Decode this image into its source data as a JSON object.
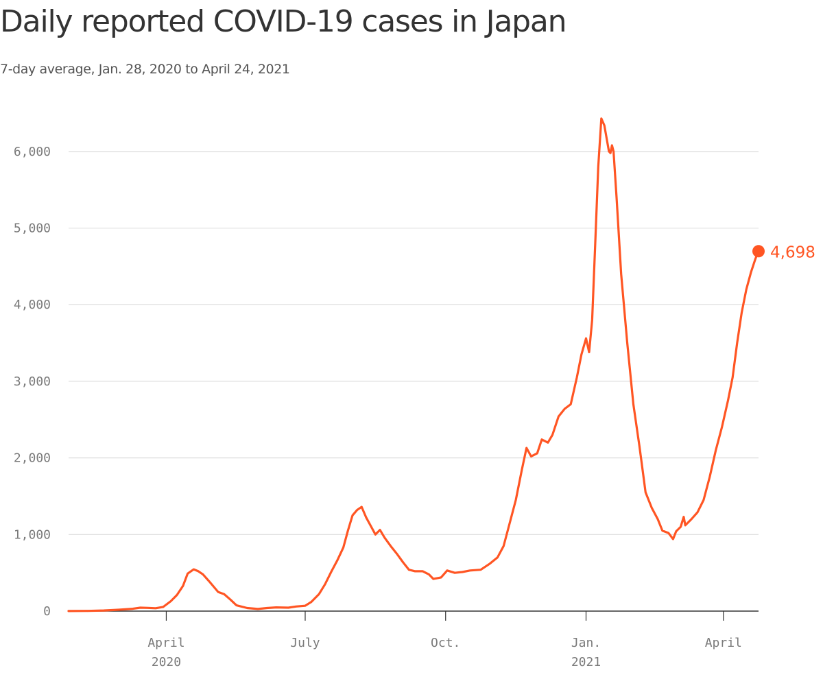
{
  "title": "Daily reported COVID-19 cases in Japan",
  "subtitle": "7-day average, Jan. 28, 2020 to April 24, 2021",
  "colors": {
    "line": "#ff5523",
    "grid": "#dddddd",
    "axis": "#333333"
  },
  "chart_data": {
    "type": "line",
    "title": "Daily reported COVID-19 cases in Japan",
    "subtitle": "7-day average, Jan. 28, 2020 to April 24, 2021",
    "xlabel": "",
    "ylabel": "",
    "xlim": [
      "2020-01-28",
      "2021-04-24"
    ],
    "ylim": [
      0,
      6500
    ],
    "y_ticks": [
      {
        "value": 0,
        "label": "0"
      },
      {
        "value": 1000,
        "label": "1,000"
      },
      {
        "value": 2000,
        "label": "2,000"
      },
      {
        "value": 3000,
        "label": "3,000"
      },
      {
        "value": 4000,
        "label": "4,000"
      },
      {
        "value": 5000,
        "label": "5,000"
      },
      {
        "value": 6000,
        "label": "6,000"
      }
    ],
    "x_ticks": [
      {
        "date": "2020-04-01",
        "label": "April",
        "year": "2020"
      },
      {
        "date": "2020-07-01",
        "label": "July",
        "year": ""
      },
      {
        "date": "2020-10-01",
        "label": "Oct.",
        "year": ""
      },
      {
        "date": "2021-01-01",
        "label": "Jan.",
        "year": "2021"
      },
      {
        "date": "2021-04-01",
        "label": "April",
        "year": ""
      }
    ],
    "grid": true,
    "end_label": "4,698",
    "series": [
      {
        "values": [
          [
            "2020-01-28",
            1
          ],
          [
            "2020-02-10",
            3
          ],
          [
            "2020-02-20",
            8
          ],
          [
            "2020-03-01",
            18
          ],
          [
            "2020-03-10",
            30
          ],
          [
            "2020-03-15",
            45
          ],
          [
            "2020-03-20",
            42
          ],
          [
            "2020-03-25",
            38
          ],
          [
            "2020-03-30",
            55
          ],
          [
            "2020-04-04",
            130
          ],
          [
            "2020-04-08",
            210
          ],
          [
            "2020-04-12",
            330
          ],
          [
            "2020-04-15",
            490
          ],
          [
            "2020-04-19",
            545
          ],
          [
            "2020-04-22",
            520
          ],
          [
            "2020-04-25",
            480
          ],
          [
            "2020-04-29",
            390
          ],
          [
            "2020-05-05",
            250
          ],
          [
            "2020-05-09",
            220
          ],
          [
            "2020-05-13",
            150
          ],
          [
            "2020-05-17",
            75
          ],
          [
            "2020-05-24",
            40
          ],
          [
            "2020-05-31",
            28
          ],
          [
            "2020-06-06",
            40
          ],
          [
            "2020-06-12",
            48
          ],
          [
            "2020-06-20",
            45
          ],
          [
            "2020-06-25",
            60
          ],
          [
            "2020-07-01",
            70
          ],
          [
            "2020-07-05",
            120
          ],
          [
            "2020-07-10",
            220
          ],
          [
            "2020-07-14",
            350
          ],
          [
            "2020-07-18",
            510
          ],
          [
            "2020-07-22",
            660
          ],
          [
            "2020-07-26",
            830
          ],
          [
            "2020-07-29",
            1050
          ],
          [
            "2020-08-01",
            1250
          ],
          [
            "2020-08-04",
            1320
          ],
          [
            "2020-08-07",
            1360
          ],
          [
            "2020-08-10",
            1220
          ],
          [
            "2020-08-13",
            1110
          ],
          [
            "2020-08-16",
            1000
          ],
          [
            "2020-08-19",
            1060
          ],
          [
            "2020-08-22",
            960
          ],
          [
            "2020-08-26",
            850
          ],
          [
            "2020-08-30",
            750
          ],
          [
            "2020-09-03",
            640
          ],
          [
            "2020-09-07",
            540
          ],
          [
            "2020-09-11",
            520
          ],
          [
            "2020-09-16",
            520
          ],
          [
            "2020-09-20",
            480
          ],
          [
            "2020-09-23",
            420
          ],
          [
            "2020-09-28",
            440
          ],
          [
            "2020-10-02",
            530
          ],
          [
            "2020-10-07",
            500
          ],
          [
            "2020-10-12",
            510
          ],
          [
            "2020-10-17",
            530
          ],
          [
            "2020-10-24",
            540
          ],
          [
            "2020-10-30",
            620
          ],
          [
            "2020-11-04",
            700
          ],
          [
            "2020-11-08",
            850
          ],
          [
            "2020-11-12",
            1150
          ],
          [
            "2020-11-16",
            1450
          ],
          [
            "2020-11-20",
            1850
          ],
          [
            "2020-11-23",
            2130
          ],
          [
            "2020-11-26",
            2020
          ],
          [
            "2020-11-30",
            2060
          ],
          [
            "2020-12-03",
            2240
          ],
          [
            "2020-12-07",
            2200
          ],
          [
            "2020-12-10",
            2300
          ],
          [
            "2020-12-14",
            2540
          ],
          [
            "2020-12-18",
            2640
          ],
          [
            "2020-12-22",
            2700
          ],
          [
            "2020-12-26",
            3050
          ],
          [
            "2020-12-29",
            3350
          ],
          [
            "2021-01-01",
            3560
          ],
          [
            "2021-01-03",
            3380
          ],
          [
            "2021-01-05",
            3800
          ],
          [
            "2021-01-07",
            4800
          ],
          [
            "2021-01-09",
            5800
          ],
          [
            "2021-01-11",
            6430
          ],
          [
            "2021-01-13",
            6340
          ],
          [
            "2021-01-16",
            6000
          ],
          [
            "2021-01-17",
            5980
          ],
          [
            "2021-01-18",
            6080
          ],
          [
            "2021-01-19",
            6000
          ],
          [
            "2021-01-21",
            5400
          ],
          [
            "2021-01-24",
            4400
          ],
          [
            "2021-01-28",
            3500
          ],
          [
            "2021-02-01",
            2700
          ],
          [
            "2021-02-05",
            2150
          ],
          [
            "2021-02-09",
            1550
          ],
          [
            "2021-02-13",
            1350
          ],
          [
            "2021-02-17",
            1200
          ],
          [
            "2021-02-20",
            1050
          ],
          [
            "2021-02-24",
            1020
          ],
          [
            "2021-02-27",
            940
          ],
          [
            "2021-03-01",
            1040
          ],
          [
            "2021-03-04",
            1100
          ],
          [
            "2021-03-06",
            1230
          ],
          [
            "2021-03-07",
            1120
          ],
          [
            "2021-03-11",
            1200
          ],
          [
            "2021-03-15",
            1290
          ],
          [
            "2021-03-19",
            1450
          ],
          [
            "2021-03-23",
            1750
          ],
          [
            "2021-03-27",
            2100
          ],
          [
            "2021-03-31",
            2400
          ],
          [
            "2021-04-04",
            2750
          ],
          [
            "2021-04-07",
            3050
          ],
          [
            "2021-04-10",
            3500
          ],
          [
            "2021-04-13",
            3900
          ],
          [
            "2021-04-16",
            4200
          ],
          [
            "2021-04-19",
            4420
          ],
          [
            "2021-04-22",
            4600
          ],
          [
            "2021-04-24",
            4698
          ]
        ]
      }
    ]
  }
}
